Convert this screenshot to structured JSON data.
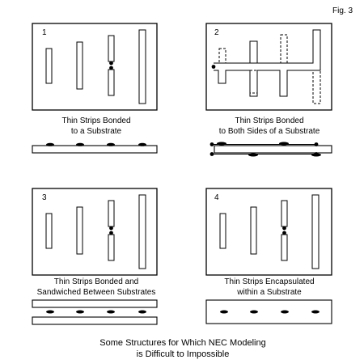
{
  "figure_label": "Fig. 3",
  "caption": {
    "line1": "Some Structures for Which NEC Modeling",
    "line2": "is Difficult to Impossible"
  },
  "panels": [
    {
      "number": "1",
      "label_line1": "Thin Strips Bonded",
      "label_line2": "to a Substrate"
    },
    {
      "number": "2",
      "label_line1": "Thin Strips Bonded",
      "label_line2": "to Both Sides of a Substrate"
    },
    {
      "number": "3",
      "label_line1": "Thin Strips Bonded and",
      "label_line2": "Sandwiched Between Substrates"
    },
    {
      "number": "4",
      "label_line1": "Thin Strips Encapsulated",
      "label_line2": "within a Substrate"
    }
  ]
}
